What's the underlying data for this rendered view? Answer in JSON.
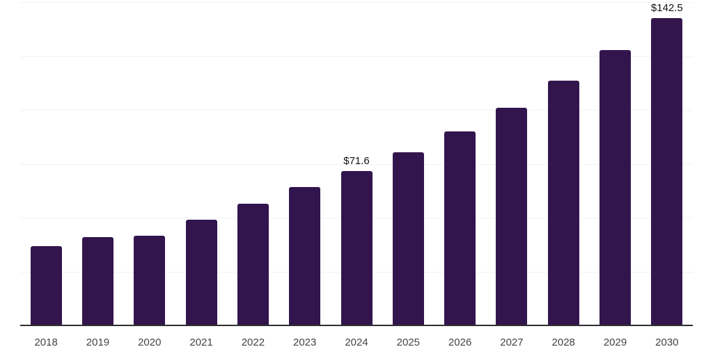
{
  "chart_data": {
    "type": "bar",
    "title": "",
    "xlabel": "",
    "ylabel": "",
    "categories": [
      "2018",
      "2019",
      "2020",
      "2021",
      "2022",
      "2023",
      "2024",
      "2025",
      "2026",
      "2027",
      "2028",
      "2029",
      "2030"
    ],
    "values": [
      36.7,
      40.9,
      41.5,
      48.9,
      56.6,
      64.1,
      71.6,
      80.4,
      90.1,
      101.0,
      113.6,
      127.7,
      142.5
    ],
    "labeled_points": [
      {
        "category": "2024",
        "label": "$71.6"
      },
      {
        "category": "2030",
        "label": "$142.5"
      }
    ],
    "ylim": [
      0,
      150
    ],
    "gridline_step": 25,
    "grid": "horizontal-only",
    "legend": "none",
    "y_axis_tick_labels": "none",
    "colors": {
      "bar": "#33154e",
      "gridline": "#f2f2f2",
      "axis_line": "#2e2e2e",
      "tick_label": "#444444",
      "data_label": "#111111",
      "background": "#ffffff"
    }
  }
}
